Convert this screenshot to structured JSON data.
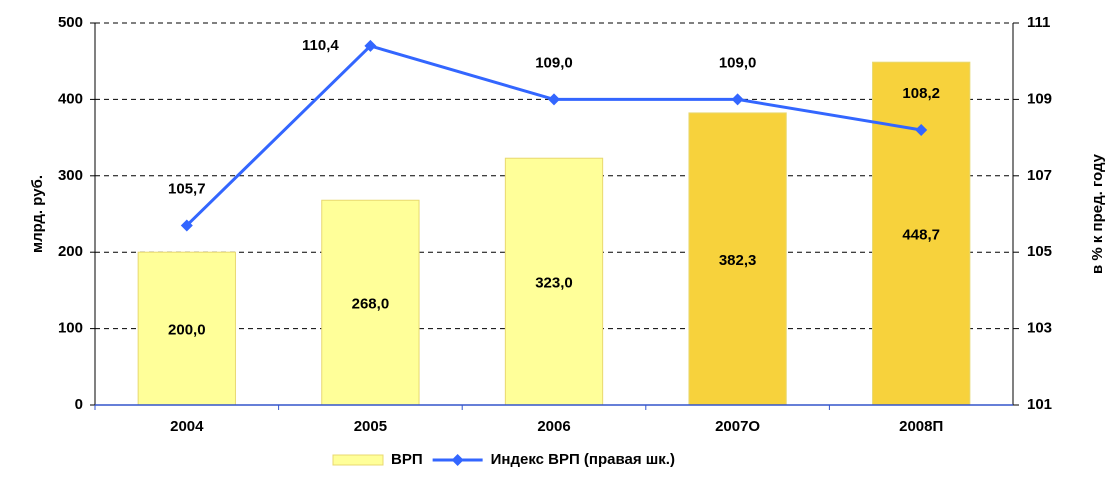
{
  "chart_data": {
    "type": "bar_line",
    "categories": [
      "2004",
      "2005",
      "2006",
      "2007О",
      "2008П"
    ],
    "series": [
      {
        "name": "ВРП",
        "type": "bar",
        "colors": [
          "#ffff99",
          "#ffff99",
          "#ffff99",
          "#f7d23c",
          "#f7d23c"
        ],
        "values": [
          200.0,
          268.0,
          323.0,
          382.3,
          448.7
        ],
        "value_labels": [
          "200,0",
          "268,0",
          "323,0",
          "382,3",
          "448,7"
        ]
      },
      {
        "name": "Индекс ВРП (правая шк.)",
        "type": "line",
        "axis": "y2",
        "color": "#3366ff",
        "values": [
          105.7,
          110.4,
          109.0,
          109.0,
          108.2
        ],
        "value_labels": [
          "105,7",
          "110,4",
          "109,0",
          "109,0",
          "108,2"
        ]
      }
    ],
    "ylabel": "млрд. руб.",
    "y2label": "в % к пред. году",
    "ylim": [
      0,
      500
    ],
    "yticks": [
      0,
      100,
      200,
      300,
      400,
      500
    ],
    "y2lim": [
      101,
      111
    ],
    "y2ticks": [
      101,
      103,
      105,
      107,
      109,
      111
    ],
    "grid": true,
    "legend": "bottom"
  }
}
